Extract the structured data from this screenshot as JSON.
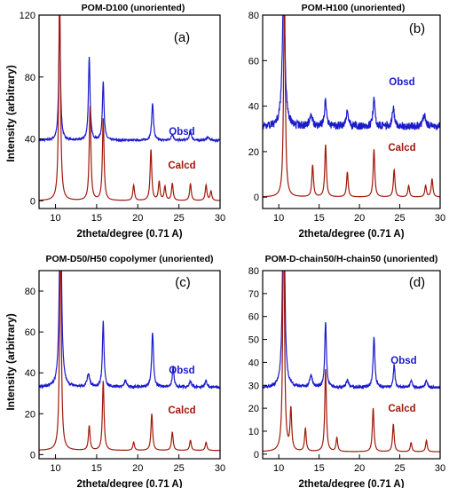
{
  "chart_data": [
    {
      "type": "line",
      "title": "POM-D100 (unoriented)",
      "panel_label": "(a)",
      "xlabel": "2theta/degree (0.71 A)",
      "ylabel": "Intensity (arbitrary)",
      "xlim": [
        8,
        30
      ],
      "ylim": [
        -5,
        120
      ],
      "xticks": [
        10,
        15,
        20,
        25,
        30
      ],
      "yticks": [
        0,
        40,
        80,
        120
      ],
      "series": [
        {
          "name": "Obsd",
          "color": "#1a1acc",
          "baseline": 39,
          "peaks": [
            [
              10.5,
              80,
              0.12
            ],
            [
              14.1,
              54,
              0.12
            ],
            [
              15.8,
              38,
              0.12
            ],
            [
              21.8,
              24,
              0.13
            ],
            [
              24.2,
              4,
              0.15
            ],
            [
              26.4,
              6,
              0.15
            ],
            [
              28.5,
              2,
              0.2
            ]
          ]
        },
        {
          "name": "Calcd",
          "color": "#a0180a",
          "baseline": 0,
          "peaks": [
            [
              10.5,
              140,
              0.12
            ],
            [
              14.2,
              61,
              0.12
            ],
            [
              15.8,
              53,
              0.12
            ],
            [
              19.5,
              10,
              0.12
            ],
            [
              21.6,
              33,
              0.12
            ],
            [
              22.6,
              12,
              0.12
            ],
            [
              23.3,
              9,
              0.12
            ],
            [
              24.2,
              11,
              0.12
            ],
            [
              26.4,
              11,
              0.12
            ],
            [
              28.3,
              10,
              0.12
            ],
            [
              28.9,
              6,
              0.12
            ]
          ]
        }
      ]
    },
    {
      "type": "line",
      "title": "POM-H100 (unoriented)",
      "panel_label": "(b)",
      "xlabel": "2theta/degree (0.71 A)",
      "ylabel": "",
      "xlim": [
        8,
        30
      ],
      "ylim": [
        -5,
        80
      ],
      "xticks": [
        10,
        15,
        20,
        25,
        30
      ],
      "yticks": [
        0,
        20,
        40,
        60,
        80
      ],
      "series": [
        {
          "name": "Obsd",
          "color": "#1a1acc",
          "baseline": 31,
          "peaks": [
            [
              10.6,
              60,
              0.2
            ],
            [
              14.0,
              6,
              0.2
            ],
            [
              15.8,
              12,
              0.15
            ],
            [
              18.5,
              6,
              0.2
            ],
            [
              21.8,
              12,
              0.15
            ],
            [
              24.2,
              8,
              0.15
            ],
            [
              28.0,
              5,
              0.2
            ]
          ]
        },
        {
          "name": "Calcd",
          "color": "#a0180a",
          "baseline": 0,
          "peaks": [
            [
              10.7,
              95,
              0.12
            ],
            [
              14.2,
              14,
              0.12
            ],
            [
              15.8,
              23,
              0.12
            ],
            [
              18.5,
              11,
              0.12
            ],
            [
              21.8,
              21,
              0.12
            ],
            [
              24.3,
              12,
              0.12
            ],
            [
              26.1,
              5,
              0.12
            ],
            [
              28.2,
              5,
              0.12
            ],
            [
              29.0,
              8,
              0.12
            ]
          ]
        }
      ]
    },
    {
      "type": "line",
      "title": "POM-D50/H50 copolymer (unoriented)",
      "panel_label": "(c)",
      "xlabel": "2theta/degree (0.71 A)",
      "ylabel": "Intensity (arbitrary)",
      "xlim": [
        8,
        30
      ],
      "ylim": [
        -2,
        90
      ],
      "xticks": [
        10,
        15,
        20,
        25,
        30
      ],
      "yticks": [
        0,
        20,
        40,
        60,
        80
      ],
      "series": [
        {
          "name": "Obsd",
          "color": "#1a1acc",
          "baseline": 33,
          "peaks": [
            [
              10.6,
              100,
              0.15
            ],
            [
              14.0,
              6,
              0.2
            ],
            [
              15.8,
              32,
              0.12
            ],
            [
              18.5,
              3,
              0.2
            ],
            [
              21.8,
              27,
              0.13
            ],
            [
              24.3,
              10,
              0.12
            ],
            [
              26.4,
              3,
              0.15
            ],
            [
              28.3,
              3,
              0.15
            ]
          ]
        },
        {
          "name": "Calcd",
          "color": "#a0180a",
          "baseline": 2,
          "peaks": [
            [
              10.6,
              110,
              0.12
            ],
            [
              14.1,
              12,
              0.12
            ],
            [
              15.8,
              34,
              0.12
            ],
            [
              19.5,
              4,
              0.12
            ],
            [
              21.7,
              18,
              0.12
            ],
            [
              24.2,
              9,
              0.12
            ],
            [
              26.4,
              5,
              0.12
            ],
            [
              28.3,
              4,
              0.12
            ]
          ]
        }
      ]
    },
    {
      "type": "line",
      "title": "POM-D-chain50/H-chain50 (unoriented)",
      "panel_label": "(d)",
      "xlabel": "2theta/degree (0.71 A)",
      "ylabel": "",
      "xlim": [
        8,
        30
      ],
      "ylim": [
        -2,
        80
      ],
      "xticks": [
        10,
        15,
        20,
        25,
        30
      ],
      "yticks": [
        0,
        10,
        20,
        30,
        40,
        50,
        60,
        70,
        80
      ],
      "series": [
        {
          "name": "Obsd",
          "color": "#1a1acc",
          "baseline": 29,
          "peaks": [
            [
              10.6,
              100,
              0.15
            ],
            [
              14.0,
              5,
              0.2
            ],
            [
              15.8,
              29,
              0.12
            ],
            [
              18.5,
              3,
              0.2
            ],
            [
              21.8,
              22,
              0.13
            ],
            [
              24.3,
              10,
              0.12
            ],
            [
              26.4,
              3,
              0.15
            ],
            [
              28.3,
              3,
              0.15
            ]
          ]
        },
        {
          "name": "Calcd",
          "color": "#a0180a",
          "baseline": 1,
          "peaks": [
            [
              10.6,
              110,
              0.12
            ],
            [
              11.5,
              18,
              0.12
            ],
            [
              13.3,
              10,
              0.12
            ],
            [
              15.8,
              36,
              0.12
            ],
            [
              17.2,
              6,
              0.12
            ],
            [
              21.7,
              19,
              0.12
            ],
            [
              24.2,
              12,
              0.12
            ],
            [
              26.4,
              4,
              0.12
            ],
            [
              28.3,
              5,
              0.12
            ]
          ]
        }
      ]
    }
  ]
}
